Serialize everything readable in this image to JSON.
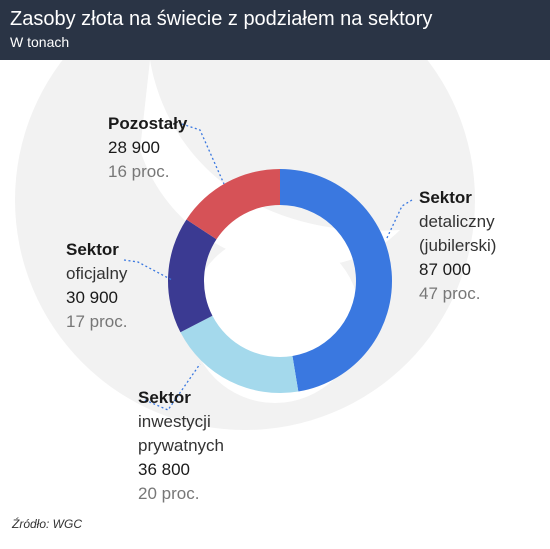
{
  "title": "Zasoby złota na świecie z podziałem na sektory",
  "subtitle": "W tonach",
  "source": "Źródło: WGC",
  "chart_data": {
    "type": "pie",
    "style": "donut",
    "unit": "tony",
    "slices": [
      {
        "key": "jubilerski",
        "label_lines": [
          "Sektor",
          "detaliczny",
          "(jubilerski)"
        ],
        "value": 87000,
        "value_text": "87 000",
        "percent": 47,
        "percent_text": "47 proc.",
        "color": "#3a78e0"
      },
      {
        "key": "inwestycyjny",
        "label_lines": [
          "Sektor",
          "inwestycji",
          "prywatnych"
        ],
        "value": 36800,
        "value_text": "36 800",
        "percent": 20,
        "percent_text": "20 proc.",
        "color": "#a4d9ec"
      },
      {
        "key": "oficjalny",
        "label_lines": [
          "Sektor",
          "oficjalny"
        ],
        "value": 30900,
        "value_text": "30 900",
        "percent": 17,
        "percent_text": "17 proc.",
        "color": "#3b3a92"
      },
      {
        "key": "pozostaly",
        "label_lines": [
          "Pozostały"
        ],
        "value": 28900,
        "value_text": "28 900",
        "percent": 16,
        "percent_text": "16 proc.",
        "color": "#d65257"
      }
    ]
  }
}
